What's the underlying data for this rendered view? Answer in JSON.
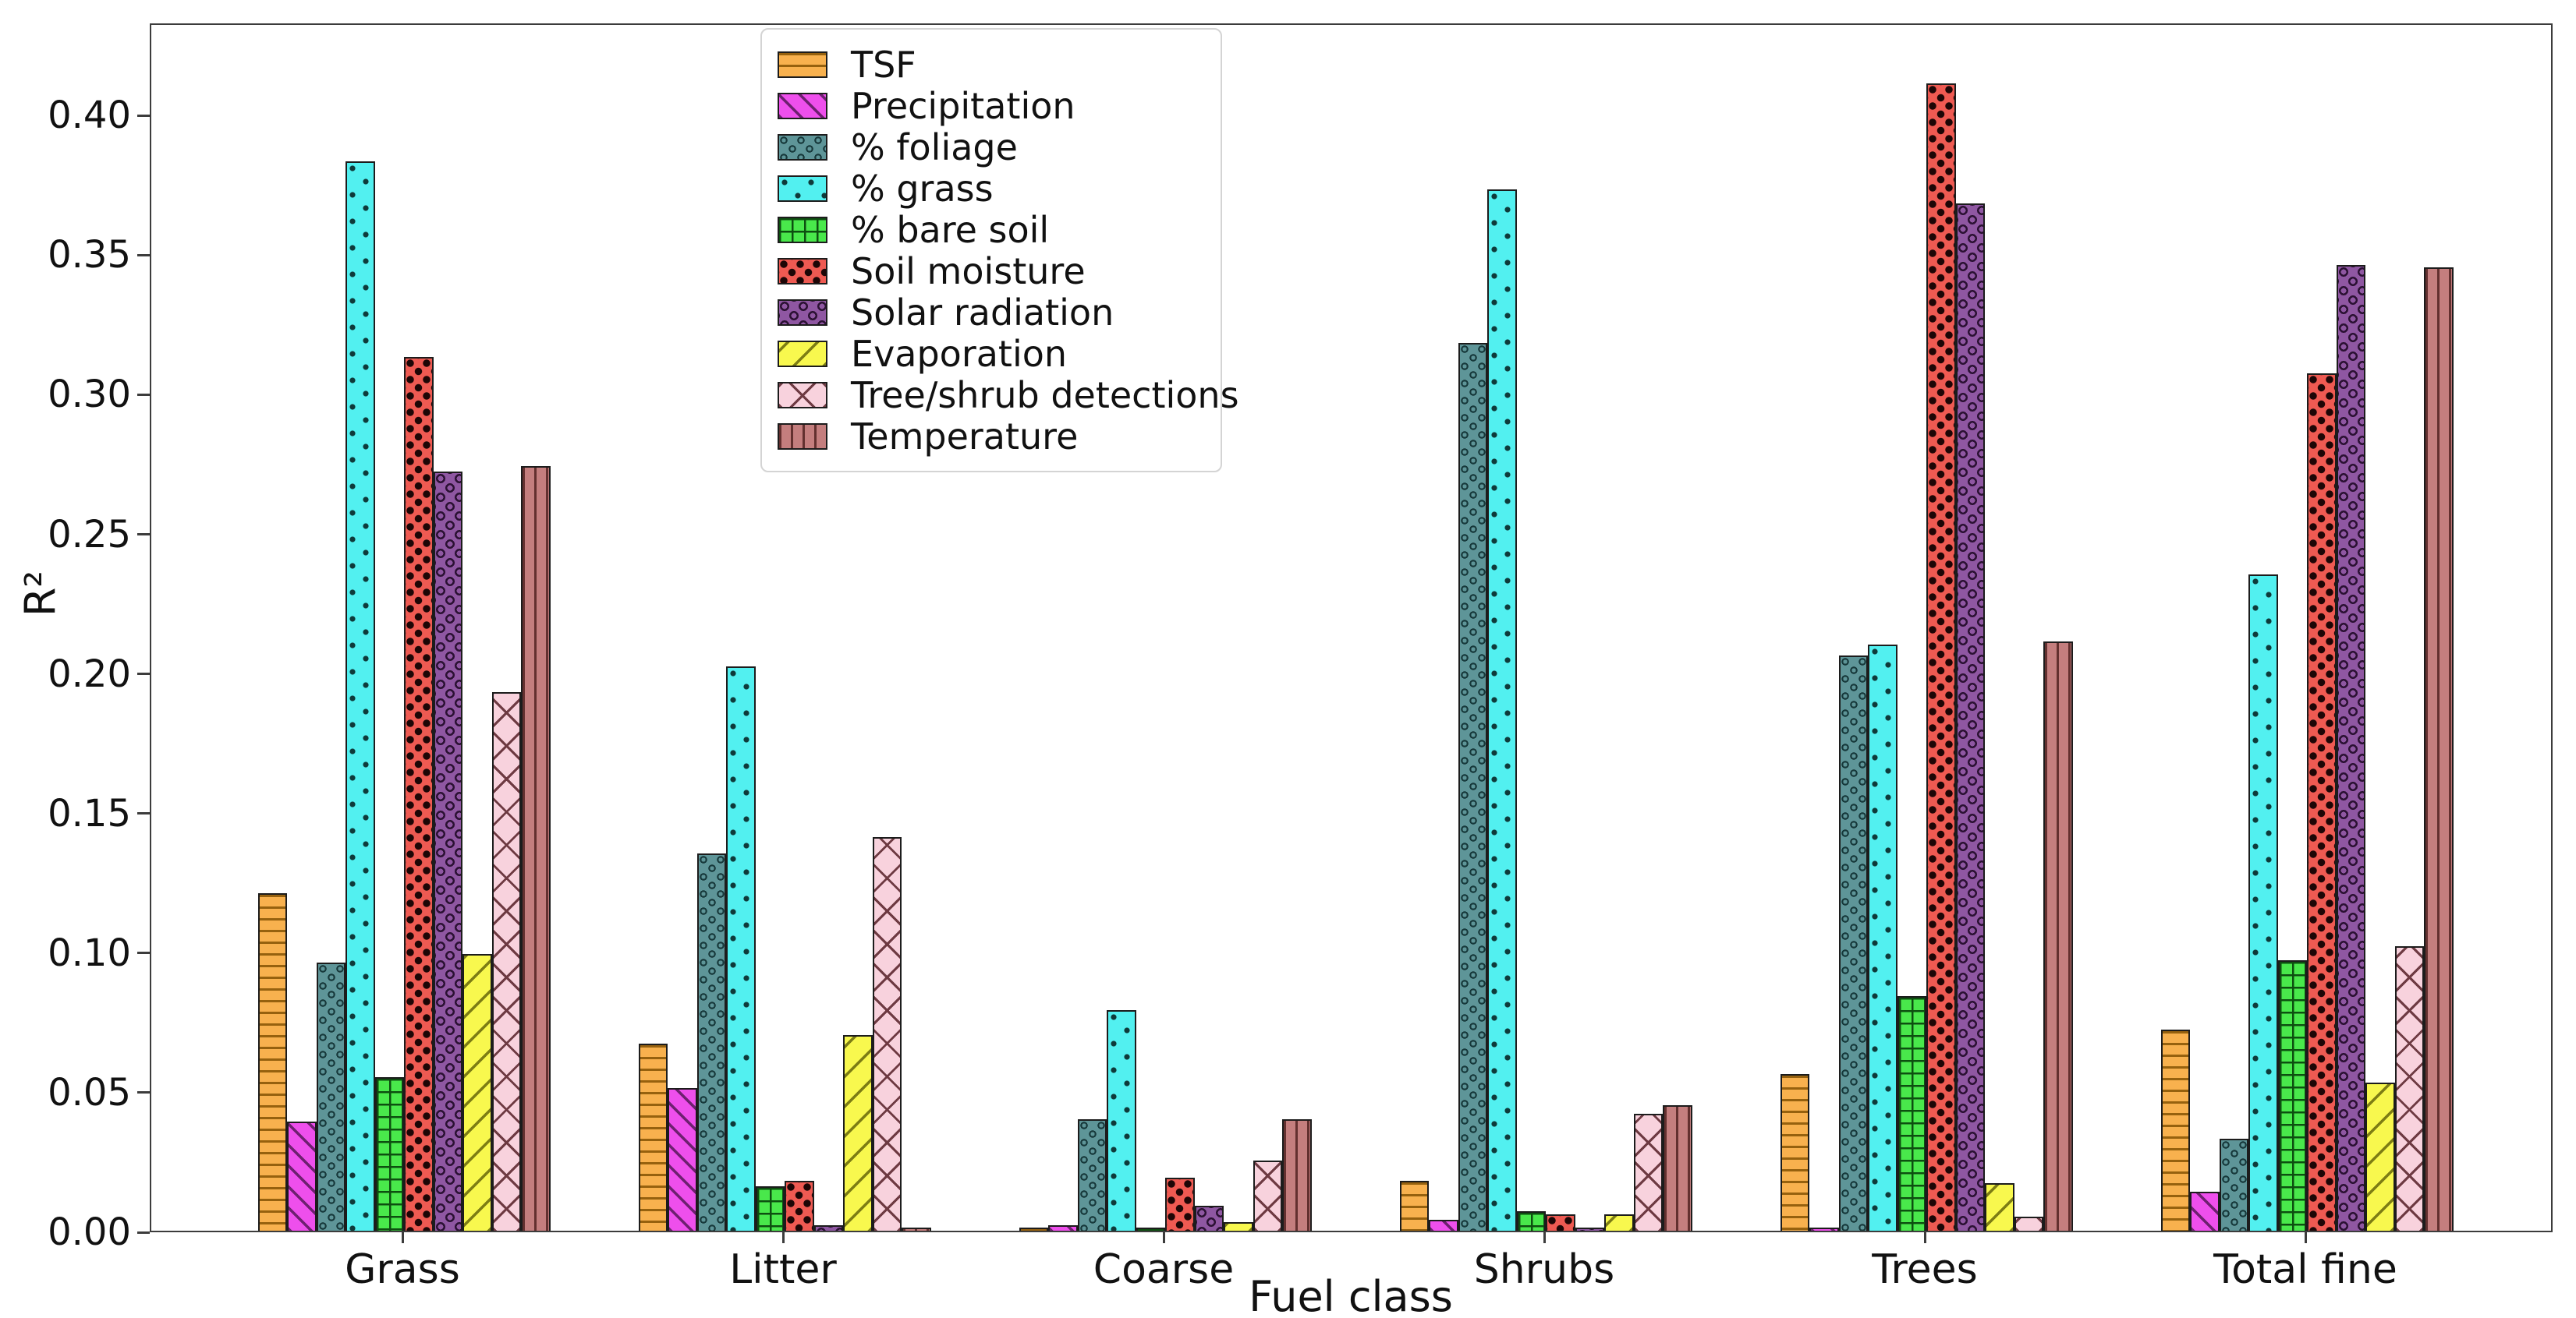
{
  "figure": {
    "background": "#ffffff",
    "spine_color": "#3c3c3c"
  },
  "chart_data": {
    "type": "bar",
    "title": "",
    "xlabel": "Fuel class",
    "ylabel": "R²",
    "grid": false,
    "legend_position": "upper-center-left",
    "categories": [
      "Grass",
      "Litter",
      "Coarse",
      "Shrubs",
      "Trees",
      "Total fine"
    ],
    "ylim": [
      0,
      0.433
    ],
    "ytick_labels": [
      "0.00",
      "0.05",
      "0.10",
      "0.15",
      "0.20",
      "0.25",
      "0.30",
      "0.35",
      "0.40"
    ],
    "ytick_values": [
      0.0,
      0.05,
      0.1,
      0.15,
      0.2,
      0.25,
      0.3,
      0.35,
      0.4
    ],
    "series": [
      {
        "name": "TSF",
        "color": "#F8B14E",
        "hatch": "horizontal",
        "hatch_color": "#96610E",
        "values": [
          0.121,
          0.067,
          0.001,
          0.018,
          0.056,
          0.072
        ]
      },
      {
        "name": "Precipitation",
        "color": "#EE4FEC",
        "hatch": "diag-forward",
        "hatch_color": "#6E2070",
        "values": [
          0.039,
          0.051,
          0.002,
          0.004,
          0.001,
          0.014
        ]
      },
      {
        "name": "% foliage",
        "color": "#5E9598",
        "hatch": "circles-dense",
        "hatch_color": "#17393B",
        "values": [
          0.096,
          0.135,
          0.04,
          0.318,
          0.206,
          0.033
        ]
      },
      {
        "name": "% grass",
        "color": "#52F0F0",
        "hatch": "dots",
        "hatch_color": "#0E3A3A",
        "values": [
          0.383,
          0.202,
          0.079,
          0.373,
          0.21,
          0.235
        ]
      },
      {
        "name": "% bare soil",
        "color": "#49E84B",
        "hatch": "grid-plus",
        "hatch_color": "#0D4F10",
        "values": [
          0.055,
          0.016,
          0.001,
          0.007,
          0.084,
          0.097
        ]
      },
      {
        "name": "Soil moisture",
        "color": "#EE5A52",
        "hatch": "stars",
        "hatch_color": "#1D0606",
        "values": [
          0.313,
          0.018,
          0.019,
          0.006,
          0.411,
          0.307
        ]
      },
      {
        "name": "Solar radiation",
        "color": "#8F57A2",
        "hatch": "rings",
        "hatch_color": "#2B1133",
        "values": [
          0.272,
          0.002,
          0.009,
          0.001,
          0.368,
          0.346
        ]
      },
      {
        "name": "Evaporation",
        "color": "#F8F84E",
        "hatch": "diag-back",
        "hatch_color": "#7D7D14",
        "values": [
          0.099,
          0.07,
          0.003,
          0.006,
          0.017,
          0.053
        ]
      },
      {
        "name": "Tree/shrub detections",
        "color": "#F8D2DD",
        "hatch": "crosshatch",
        "hatch_color": "#6E3A42",
        "values": [
          0.193,
          0.141,
          0.025,
          0.042,
          0.005,
          0.102
        ]
      },
      {
        "name": "Temperature",
        "color": "#C47E7E",
        "hatch": "vertical",
        "hatch_color": "#63302F",
        "values": [
          0.274,
          0.001,
          0.04,
          0.045,
          0.211,
          0.345
        ]
      }
    ]
  }
}
